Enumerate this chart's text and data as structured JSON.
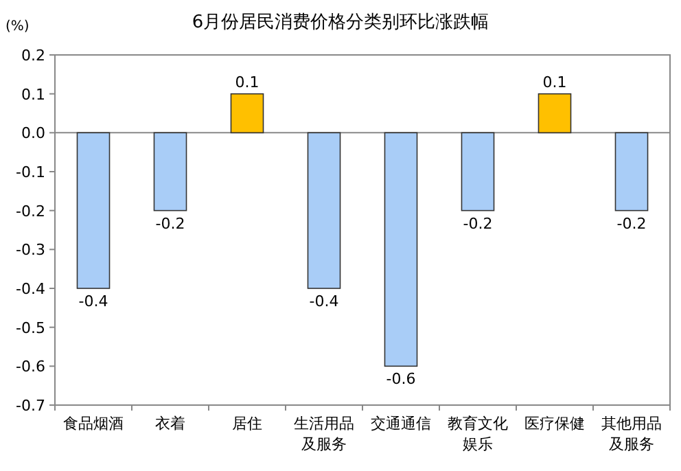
{
  "chart_data": {
    "type": "bar",
    "title": "6月份居民消费价格分类别环比涨跌幅",
    "ylabel": "(%)",
    "categories": [
      "食品烟酒",
      "衣着",
      "居住",
      "生活用品及服务",
      "交通通信",
      "教育文化娱乐",
      "医疗保健",
      "其他用品及服务"
    ],
    "values": [
      -0.4,
      -0.2,
      0.1,
      -0.4,
      -0.6,
      -0.2,
      0.1,
      -0.2
    ],
    "colors": [
      "#a9cdf7",
      "#a9cdf7",
      "#ffc000",
      "#a9cdf7",
      "#a9cdf7",
      "#a9cdf7",
      "#ffc000",
      "#a9cdf7"
    ],
    "ylim": [
      -0.7,
      0.2
    ],
    "yticks": [
      0.2,
      0.1,
      {
        "value": 0,
        "label": "0.0"
      },
      -0.1,
      -0.2,
      -0.3,
      -0.4,
      -0.5,
      -0.6,
      -0.7
    ],
    "data_labels": true
  }
}
